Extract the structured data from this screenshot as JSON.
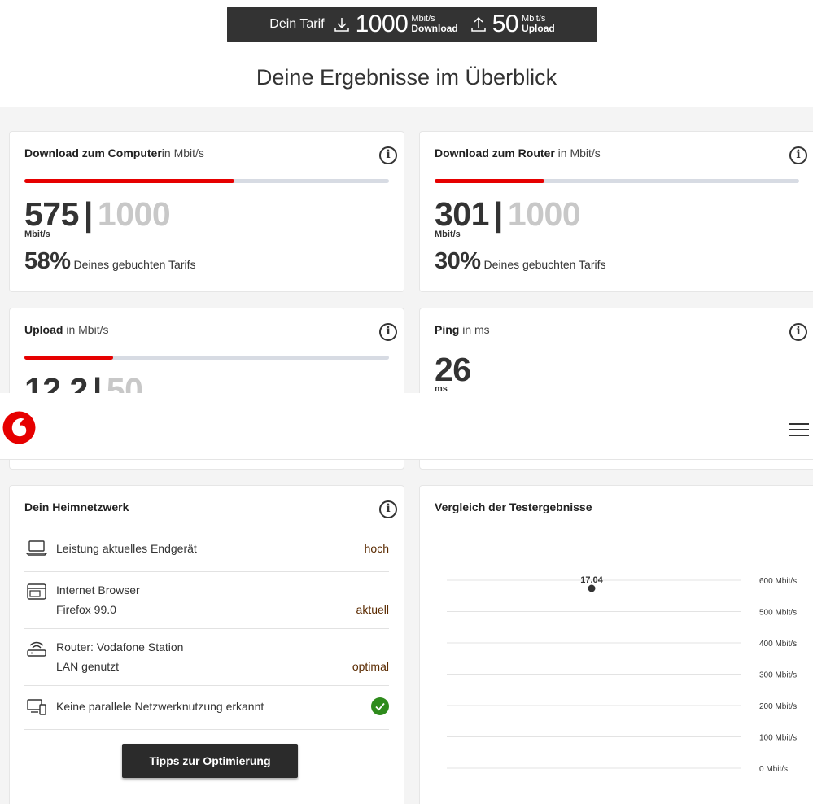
{
  "tarif": {
    "label": "Dein Tarif",
    "download_value": "1000",
    "download_unit": "Mbit/s",
    "download_label": "Download",
    "upload_value": "50",
    "upload_unit": "Mbit/s",
    "upload_label": "Upload"
  },
  "page_title": "Deine Ergebnisse im Überblick",
  "cards": {
    "download_computer": {
      "title_bold": "Download zum Computer",
      "title_unit": "in Mbit/s",
      "value": "575",
      "separator": "|",
      "max": "1000",
      "unit": "Mbit/s",
      "percent_text": "58%",
      "percent_label": "Deines gebuchten Tarifs",
      "fill_fraction": 0.575
    },
    "download_router": {
      "title_bold": "Download zum Router",
      "title_unit": " in Mbit/s",
      "value": "301",
      "separator": "|",
      "max": "1000",
      "unit": "Mbit/s",
      "percent_text": "30%",
      "percent_label": "Deines gebuchten Tarifs",
      "fill_fraction": 0.301
    },
    "upload": {
      "title_bold": "Upload",
      "title_unit": " in Mbit/s",
      "value": "12,2",
      "separator": "|",
      "max": "50",
      "fill_fraction": 0.244
    },
    "ping": {
      "title_bold": "Ping",
      "title_unit": " in ms",
      "value": "26",
      "unit": "ms"
    }
  },
  "heimnetz": {
    "title": "Dein Heimnetzwerk",
    "rows": [
      {
        "line1": "Leistung aktuelles Endgerät",
        "line2": "",
        "status": "hoch",
        "icon": "laptop-icon"
      },
      {
        "line1": "Internet Browser",
        "line2": "Firefox 99.0",
        "status": "aktuell",
        "icon": "browser-icon"
      },
      {
        "line1": "Router: Vodafone Station",
        "line2": "LAN genutzt",
        "status": "optimal",
        "icon": "router-icon"
      },
      {
        "line1": "Keine parallele Netzwerknutzung erkannt",
        "line2": "",
        "status": "",
        "icon": "devices-icon"
      }
    ],
    "button": "Tipps zur Optimierung"
  },
  "chart_section_title": "Vergleich der Testergebnisse",
  "chart_data": {
    "type": "scatter",
    "title": "Vergleich der Testergebnisse",
    "y_tick_labels": [
      "600 Mbit/s",
      "500 Mbit/s",
      "400 Mbit/s",
      "300 Mbit/s",
      "200 Mbit/s",
      "100 Mbit/s",
      "0 Mbit/s"
    ],
    "y_ticks": [
      600,
      500,
      400,
      300,
      200,
      100,
      0
    ],
    "ylim": [
      0,
      600
    ],
    "points": [
      {
        "label": "17.04",
        "y": 600
      }
    ],
    "grid": true
  },
  "colors": {
    "accent": "#e60000",
    "dark": "#333333",
    "success": "#2e8b1c"
  }
}
